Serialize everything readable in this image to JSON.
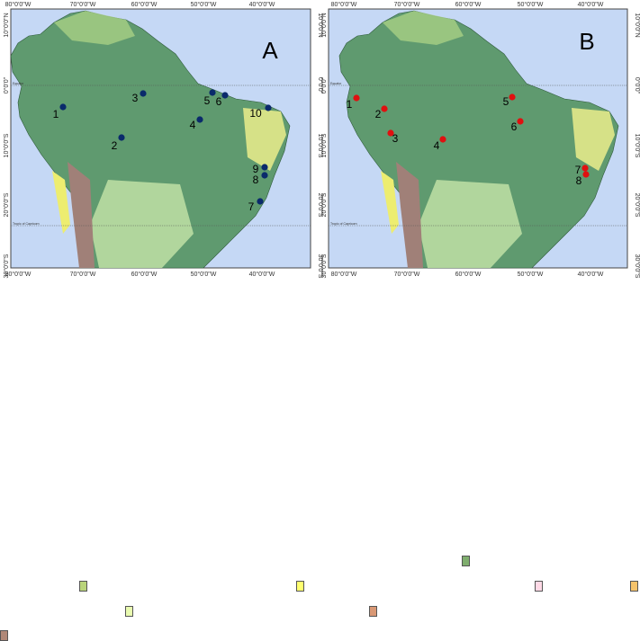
{
  "maps": [
    {
      "panel": "A",
      "marker_color": "#0a2a6b",
      "lon_labels": [
        "80°0'0\"W",
        "70°0'0\"W",
        "60°0'0\"W",
        "50°0'0\"W",
        "40°0'0\"W"
      ],
      "lat_labels": [
        "10°0'0\"N",
        "0°0'0\"",
        "10°0'0\"S",
        "20°0'0\"S",
        "30°0'0\"S"
      ],
      "equator_label": "Equator",
      "tropic_label": "Tropic of Capricorn",
      "sites": [
        "1",
        "2",
        "3",
        "4",
        "5",
        "6",
        "7",
        "8",
        "9",
        "10"
      ]
    },
    {
      "panel": "B",
      "marker_color": "#e01010",
      "lon_labels": [
        "80°0'0\"W",
        "70°0'0\"W",
        "60°0'0\"W",
        "50°0'0\"W",
        "40°0'0\"W"
      ],
      "lat_labels": [
        "10°0'0\"N",
        "0°0'0\"",
        "10°0'0\"S",
        "20°0'0\"S",
        "30°0'0\"S"
      ],
      "equator_label": "Equator",
      "tropic_label": "Tropic of Capricorn",
      "sites": [
        "1",
        "2",
        "3",
        "4",
        "5",
        "6",
        "7",
        "8"
      ]
    }
  ],
  "colors": {
    "ocean": "#c5d8f5",
    "forest": "#5f9a6f",
    "land": "#8bbf74"
  },
  "legend_swatches": [
    "#7fae6e",
    "#b9d47a",
    "#ffff70",
    "#ffd9e6",
    "#f5c36b",
    "#e9fbb0",
    "#d99875",
    "#b08878"
  ]
}
